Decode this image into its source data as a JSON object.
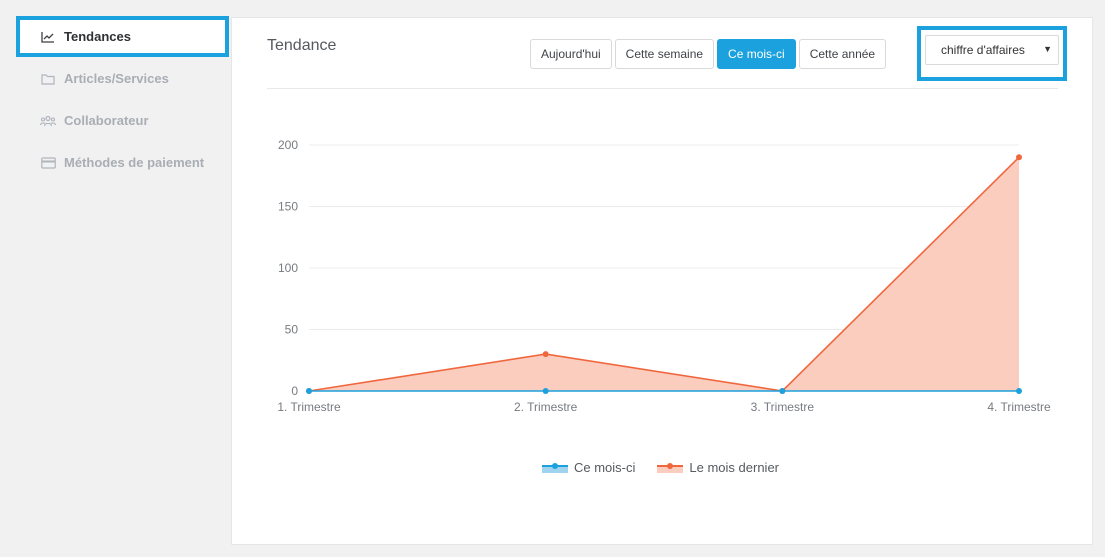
{
  "sidebar": {
    "items": [
      {
        "label": "Tendances",
        "icon": "trend-chart-icon",
        "active": true
      },
      {
        "label": "Articles/Services",
        "icon": "folder-icon",
        "active": false
      },
      {
        "label": "Collaborateur",
        "icon": "users-icon",
        "active": false
      },
      {
        "label": "Méthodes de paiement",
        "icon": "credit-card-icon",
        "active": false
      }
    ]
  },
  "panel": {
    "title": "Tendance",
    "periods": [
      "Aujourd'hui",
      "Cette semaine",
      "Ce mois-ci",
      "Cette année"
    ],
    "active_period": "Ce mois-ci",
    "metric_select": {
      "value": "chiffre d'affaires"
    }
  },
  "colors": {
    "accent": "#1aa1de",
    "series_current": "#1aa1de",
    "series_previous": "#f0673e",
    "series_previous_fill": "#fbcdbf"
  },
  "chart_data": {
    "type": "area",
    "categories": [
      "1. Trimestre",
      "2. Trimestre",
      "3. Trimestre",
      "4. Trimestre"
    ],
    "series": [
      {
        "name": "Ce mois-ci",
        "values": [
          0,
          0,
          0,
          0
        ]
      },
      {
        "name": "Le mois dernier",
        "values": [
          0,
          30,
          0,
          190
        ]
      }
    ],
    "yticks": [
      0,
      50,
      100,
      150,
      200
    ],
    "ylim": [
      0,
      200
    ],
    "grid": true,
    "legend_position": "bottom-center"
  }
}
